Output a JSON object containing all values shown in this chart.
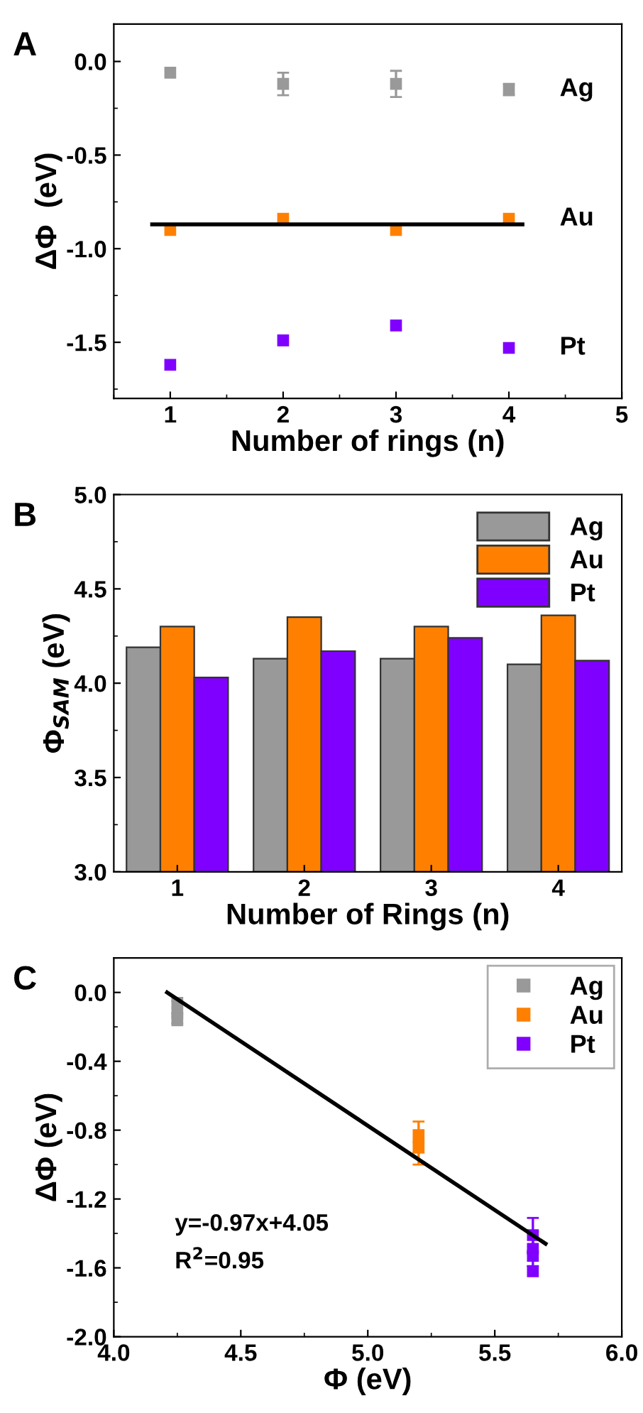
{
  "chart_data": [
    {
      "type": "scatter",
      "title": "A",
      "xlabel": "Number of rings (n)",
      "ylabel": "ΔΦ  (eV)",
      "x": [
        1,
        2,
        3,
        4
      ],
      "xlim": [
        0.5,
        5
      ],
      "xticks": [
        1,
        2,
        3,
        4,
        5
      ],
      "ylim": [
        -1.8,
        0.2
      ],
      "yticks": [
        {
          "value": 0,
          "label": "0.0"
        },
        -0.5,
        {
          "value": -1,
          "label": "-1.0"
        },
        -1.5
      ],
      "legend": false,
      "grid": false,
      "series": [
        {
          "name": "Ag",
          "color": "#999999",
          "marker": "square",
          "values": [
            -0.06,
            -0.12,
            -0.12,
            -0.15
          ],
          "errors": [
            null,
            0.06,
            0.07,
            0.03
          ]
        },
        {
          "name": "Au",
          "color": "#ff8000",
          "marker": "square",
          "values": [
            -0.9,
            -0.84,
            -0.9,
            -0.84
          ]
        },
        {
          "name": "Pt",
          "color": "#8000ff",
          "marker": "square",
          "values": [
            -1.62,
            -1.49,
            -1.41,
            -1.53
          ]
        },
        {
          "type": "line",
          "color": "#000000",
          "x": [
            0.84,
            4.12
          ],
          "values": [
            -0.87,
            -0.87
          ]
        }
      ]
    },
    {
      "type": "bar",
      "title": "B",
      "xlabel": "Number of Rings (n)",
      "ylabel": "Φ$_{SAM}$ (eV)",
      "categories": [
        "1",
        "2",
        "3",
        "4"
      ],
      "ylim": [
        3.0,
        5.0
      ],
      "yticks": [
        {
          "value": 3,
          "label": "3.0"
        },
        3.5,
        {
          "value": 4,
          "label": "4.0"
        },
        4.5,
        {
          "value": 5,
          "label": "5.0"
        }
      ],
      "legend": "top right",
      "grid": false,
      "series": [
        {
          "name": "Ag",
          "color": "#999999",
          "values": [
            4.19,
            4.13,
            4.13,
            4.1
          ]
        },
        {
          "name": "Au",
          "color": "#ff8000",
          "values": [
            4.3,
            4.35,
            4.3,
            4.36
          ]
        },
        {
          "name": "Pt",
          "color": "#8000ff",
          "values": [
            4.03,
            4.17,
            4.24,
            4.12
          ]
        }
      ]
    },
    {
      "type": "scatter",
      "title": "C",
      "xlabel": "Φ (eV)",
      "ylabel": "ΔΦ (eV)",
      "xlim": [
        4.0,
        6.0
      ],
      "xticks": [
        {
          "value": 4,
          "label": "4.0"
        },
        4.5,
        {
          "value": 5,
          "label": "5.0"
        },
        5.5,
        {
          "value": 6,
          "label": "6.0"
        }
      ],
      "ylim": [
        -2.0,
        0.2
      ],
      "yticks": [
        {
          "value": 0,
          "label": "0.0"
        },
        -0.4,
        -0.8,
        -1.2,
        -1.6,
        {
          "value": -2,
          "label": "-2.0"
        }
      ],
      "legend": "top right",
      "grid": false,
      "annotations": [
        "y=-0.97x+4.05",
        "R$^{2}$=0.95"
      ],
      "series": [
        {
          "name": "Ag",
          "color": "#999999",
          "marker": "square",
          "x": [
            4.25,
            4.25,
            4.25
          ],
          "values": [
            -0.06,
            -0.12,
            -0.15
          ],
          "errors": [
            null,
            0.07,
            0.03
          ]
        },
        {
          "name": "Au",
          "color": "#ff8000",
          "marker": "square",
          "x": [
            5.2,
            5.2
          ],
          "values": [
            -0.9,
            -0.84
          ],
          "errors": [
            0.1,
            0.09
          ]
        },
        {
          "name": "Pt",
          "color": "#8000ff",
          "marker": "square",
          "x": [
            5.65,
            5.65,
            5.65,
            5.65
          ],
          "values": [
            -1.62,
            -1.49,
            -1.41,
            -1.53
          ],
          "errors": [
            null,
            0.1,
            0.1,
            null
          ]
        },
        {
          "type": "line",
          "color": "#000000",
          "x": [
            4.21,
            5.7
          ],
          "values": [
            0.0,
            -1.46
          ]
        }
      ]
    }
  ]
}
